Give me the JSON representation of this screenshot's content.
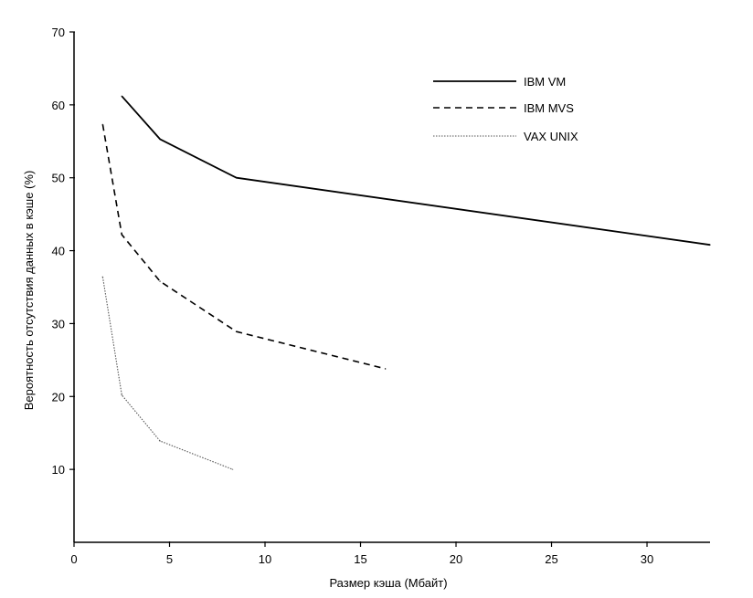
{
  "chart_data": {
    "type": "line",
    "title": "",
    "xlabel": "Размер кэша (Мбайт)",
    "ylabel": "Вероятность отсутствия данных в кэше  (%)",
    "xlim": [
      0,
      33.3
    ],
    "ylim": [
      0,
      70
    ],
    "x_ticks": [
      0,
      5,
      10,
      15,
      20,
      25,
      30
    ],
    "y_ticks": [
      10,
      20,
      30,
      40,
      50,
      60,
      70
    ],
    "grid": false,
    "legend_position": "top-right",
    "series": [
      {
        "name": "IBM VM",
        "style": "solid",
        "color": "#000000",
        "points": [
          [
            2.5,
            61.2
          ],
          [
            4.5,
            55.3
          ],
          [
            8.5,
            50.0
          ],
          [
            33.3,
            40.8
          ]
        ]
      },
      {
        "name": "IBM MVS",
        "style": "dashed",
        "color": "#000000",
        "points": [
          [
            1.5,
            57.3
          ],
          [
            2.5,
            42.2
          ],
          [
            4.5,
            35.8
          ],
          [
            8.5,
            28.9
          ],
          [
            16.3,
            23.8
          ]
        ]
      },
      {
        "name": "VAX UNIX",
        "style": "dotted",
        "color": "#555555",
        "points": [
          [
            1.5,
            36.4
          ],
          [
            2.5,
            20.2
          ],
          [
            4.5,
            13.9
          ],
          [
            8.3,
            10.0
          ]
        ]
      }
    ]
  }
}
